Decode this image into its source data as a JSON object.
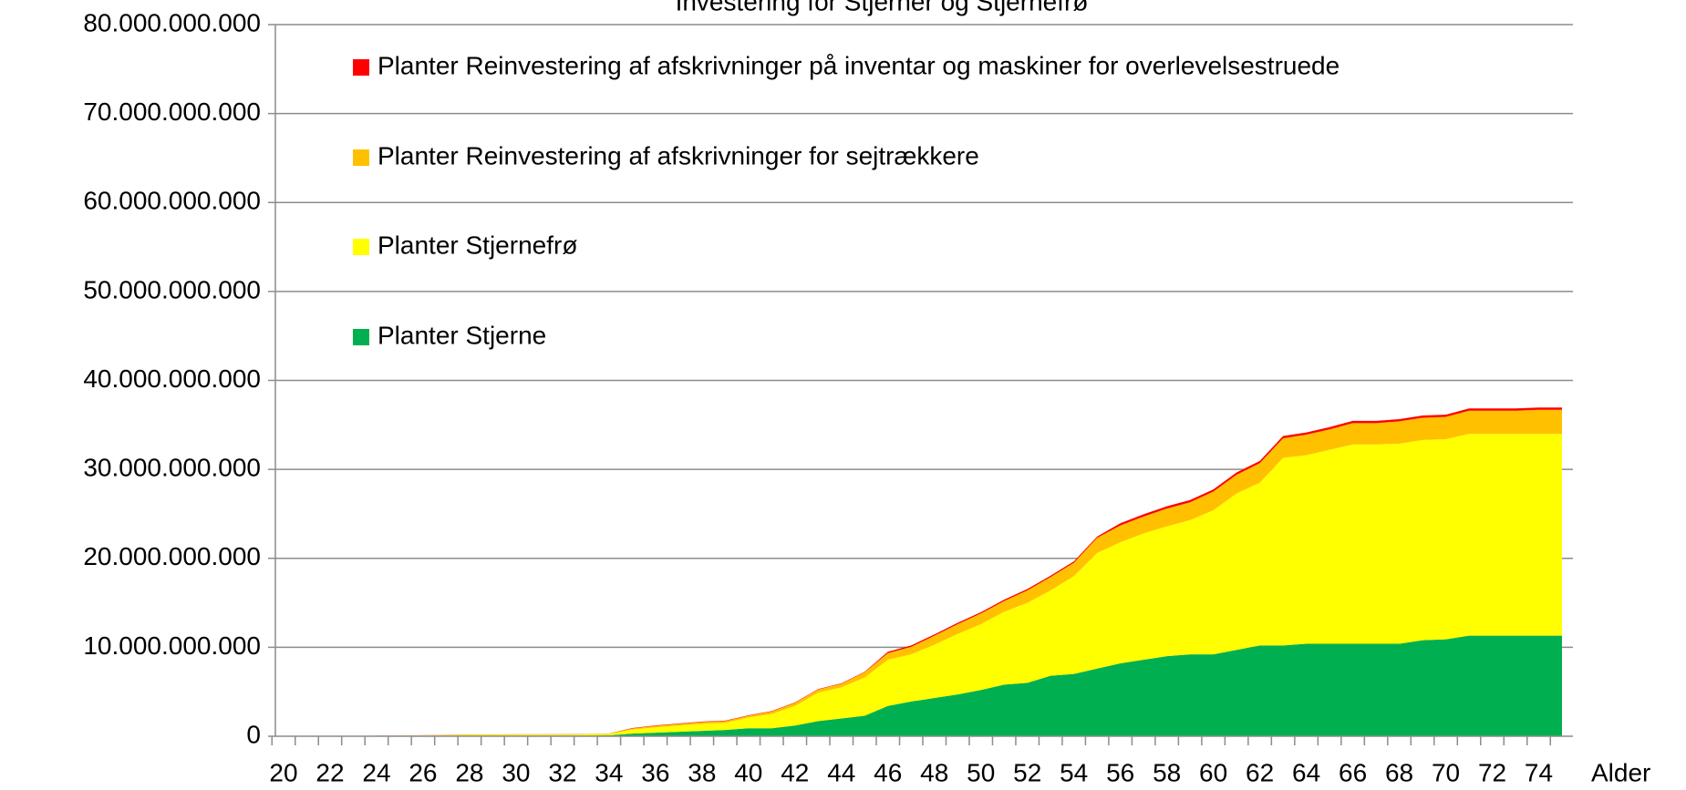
{
  "chart_data": {
    "type": "stacked_area",
    "title": "Investering for Stjerner og Stjernefrø",
    "x_label": "Alder",
    "categories": [
      20,
      null,
      22,
      null,
      24,
      null,
      26,
      null,
      28,
      null,
      30,
      null,
      32,
      null,
      34,
      null,
      36,
      null,
      38,
      null,
      40,
      null,
      42,
      null,
      44,
      null,
      46,
      null,
      48,
      null,
      50,
      null,
      52,
      null,
      54,
      null,
      56,
      null,
      58,
      null,
      60,
      null,
      62,
      null,
      64,
      null,
      66,
      null,
      68,
      null,
      70,
      null,
      72,
      null,
      74,
      null
    ],
    "series": [
      {
        "name": "Planter Stjerne",
        "color": "#00b050",
        "values": [
          0,
          0,
          0,
          0,
          20000000,
          30000000,
          40000000,
          50000000,
          60000000,
          60000000,
          70000000,
          70000000,
          80000000,
          80000000,
          100000000,
          300000000,
          400000000,
          500000000,
          600000000,
          700000000,
          900000000,
          900000000,
          1200000000,
          1700000000,
          2000000000,
          2300000000,
          3400000000,
          3900000000,
          4300000000,
          4700000000,
          5200000000,
          5800000000,
          6000000000,
          6800000000,
          7000000000,
          7600000000,
          8200000000,
          8600000000,
          9000000000,
          9200000000,
          9200000000,
          9700000000,
          10200000000,
          10200000000,
          10400000000,
          10400000000,
          10400000000,
          10400000000,
          10400000000,
          10800000000,
          10900000000,
          11300000000,
          11300000000,
          11300000000,
          11300000000,
          11300000000
        ]
      },
      {
        "name": "Planter Stjernefrø",
        "color": "#ffff00",
        "values": [
          0,
          0,
          0,
          0,
          20000000,
          30000000,
          40000000,
          80000000,
          100000000,
          100000000,
          100000000,
          100000000,
          100000000,
          120000000,
          150000000,
          450000000,
          600000000,
          700000000,
          800000000,
          800000000,
          1200000000,
          1600000000,
          2200000000,
          3200000000,
          3500000000,
          4300000000,
          5200000000,
          5300000000,
          6000000000,
          6800000000,
          7400000000,
          8200000000,
          9000000000,
          9600000000,
          11000000000,
          13000000000,
          13600000000,
          14200000000,
          14600000000,
          15100000000,
          16200000000,
          17600000000,
          18300000000,
          21100000000,
          21200000000,
          21800000000,
          22400000000,
          22400000000,
          22500000000,
          22500000000,
          22500000000,
          22700000000,
          22700000000,
          22700000000,
          22700000000,
          22700000000
        ]
      },
      {
        "name": "Planter Reinvestering af afskrivninger for sejtrækkere",
        "color": "#ffc000",
        "values": [
          0,
          0,
          0,
          0,
          10000000,
          10000000,
          20000000,
          30000000,
          40000000,
          40000000,
          40000000,
          40000000,
          50000000,
          50000000,
          50000000,
          120000000,
          160000000,
          180000000,
          200000000,
          200000000,
          200000000,
          280000000,
          350000000,
          350000000,
          400000000,
          600000000,
          750000000,
          850000000,
          1000000000,
          1100000000,
          1200000000,
          1200000000,
          1400000000,
          1500000000,
          1500000000,
          1700000000,
          1900000000,
          1900000000,
          2000000000,
          2000000000,
          2100000000,
          2100000000,
          2200000000,
          2200000000,
          2300000000,
          2300000000,
          2400000000,
          2400000000,
          2500000000,
          2500000000,
          2500000000,
          2600000000,
          2600000000,
          2600000000,
          2700000000,
          2700000000
        ]
      },
      {
        "name": "Planter Reinvestering af afskrivninger på inventar og maskiner for overlevelsestruede",
        "color": "#ff0000",
        "values": [
          0,
          0,
          0,
          0,
          10000000,
          10000000,
          10000000,
          10000000,
          10000000,
          10000000,
          10000000,
          10000000,
          10000000,
          10000000,
          10000000,
          50000000,
          50000000,
          50000000,
          50000000,
          50000000,
          50000000,
          50000000,
          50000000,
          50000000,
          50000000,
          50000000,
          150000000,
          150000000,
          150000000,
          150000000,
          150000000,
          150000000,
          150000000,
          150000000,
          150000000,
          150000000,
          250000000,
          250000000,
          250000000,
          250000000,
          250000000,
          250000000,
          250000000,
          250000000,
          250000000,
          250000000,
          250000000,
          250000000,
          250000000,
          250000000,
          250000000,
          250000000,
          250000000,
          250000000,
          250000000,
          250000000
        ]
      }
    ],
    "ylim": [
      0,
      80000000000
    ],
    "yticks": [
      0,
      {
        "value": 10000000000,
        "label": "10.000.000.000"
      },
      {
        "value": 20000000000,
        "label": "20.000.000.000"
      },
      {
        "value": 30000000000,
        "label": "30.000.000.000"
      },
      {
        "value": 40000000000,
        "label": "40.000.000.000"
      },
      {
        "value": 50000000000,
        "label": "50.000.000.000"
      },
      {
        "value": 60000000000,
        "label": "60.000.000.000"
      },
      {
        "value": 70000000000,
        "label": "70.000.000.000"
      },
      {
        "value": 80000000000,
        "label": "80.000.000.000"
      }
    ],
    "grid": true,
    "legend": "upper left"
  }
}
